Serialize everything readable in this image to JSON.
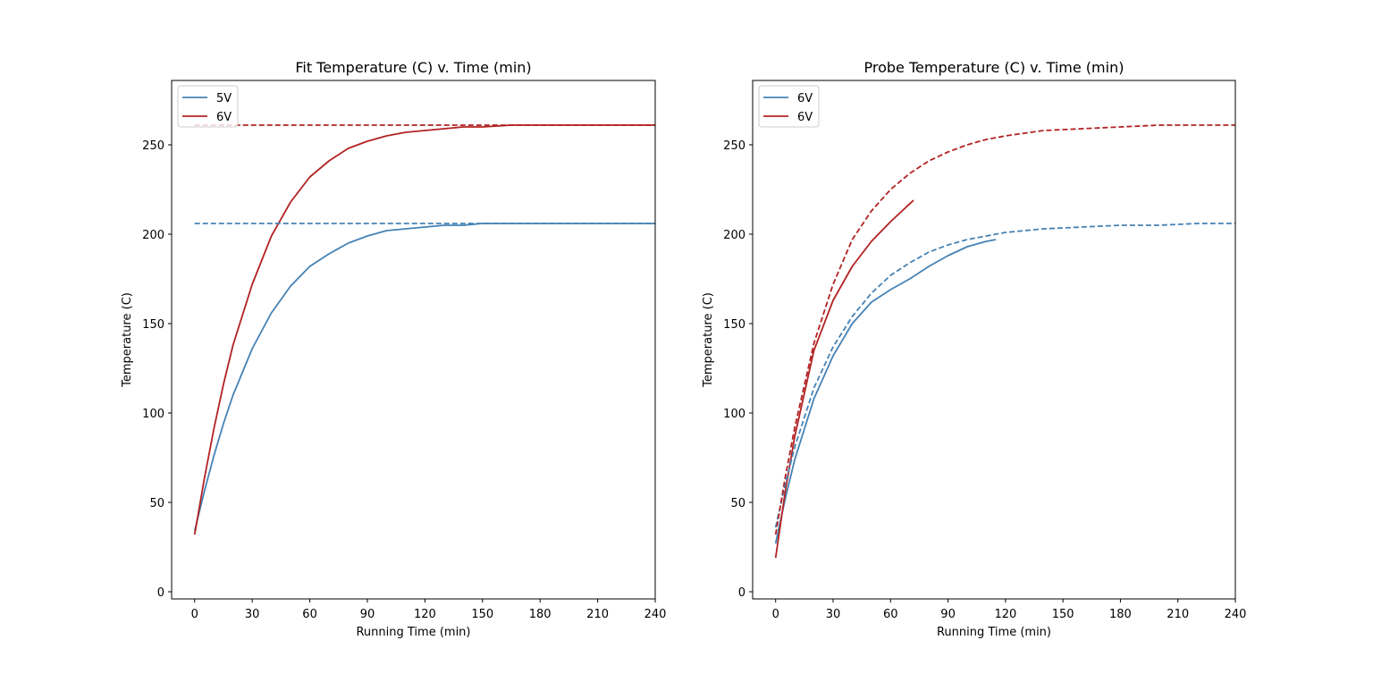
{
  "chart_data": [
    {
      "type": "line",
      "title": "Fit Temperature (C) v. Time (min)",
      "xlabel": "Running Time (min)",
      "ylabel": "Temperature (C)",
      "xlim": [
        -12,
        240
      ],
      "ylim": [
        -4,
        286
      ],
      "xticks": [
        0,
        30,
        60,
        90,
        120,
        150,
        180,
        210,
        240
      ],
      "yticks": [
        0,
        50,
        100,
        150,
        200,
        250
      ],
      "legend": "top-left",
      "series": [
        {
          "name": "5V",
          "color": "#4682b4",
          "style": "solid",
          "x": [
            0,
            5,
            10,
            15,
            20,
            30,
            40,
            50,
            60,
            70,
            80,
            90,
            100,
            110,
            120,
            130,
            140,
            150,
            165,
            180,
            200,
            220,
            240
          ],
          "y": [
            34,
            56,
            76,
            94,
            110,
            136,
            156,
            171,
            182,
            189,
            195,
            199,
            202,
            203,
            204,
            205,
            205,
            206,
            206,
            206,
            206,
            206,
            206
          ]
        },
        {
          "name": "6V",
          "color": "#b22222",
          "style": "solid",
          "x": [
            0,
            5,
            10,
            15,
            20,
            30,
            40,
            50,
            60,
            70,
            80,
            90,
            100,
            110,
            120,
            130,
            140,
            150,
            165,
            180,
            200,
            220,
            240
          ],
          "y": [
            32,
            63,
            91,
            116,
            138,
            172,
            199,
            218,
            232,
            241,
            248,
            252,
            255,
            257,
            258,
            259,
            260,
            260,
            261,
            261,
            261,
            261,
            261
          ]
        },
        {
          "name": "",
          "color": "#4682b4",
          "style": "dashed",
          "x": [
            0,
            240
          ],
          "y": [
            206,
            206
          ]
        },
        {
          "name": "",
          "color": "#b22222",
          "style": "dashed",
          "x": [
            0,
            240
          ],
          "y": [
            261,
            261
          ]
        }
      ]
    },
    {
      "type": "line",
      "title": "Probe Temperature (C) v. Time (min)",
      "xlabel": "Running Time (min)",
      "ylabel": "Temperature (C)",
      "xlim": [
        -12,
        240
      ],
      "ylim": [
        -4,
        286
      ],
      "xticks": [
        0,
        30,
        60,
        90,
        120,
        150,
        180,
        210,
        240
      ],
      "yticks": [
        0,
        50,
        100,
        150,
        200,
        250
      ],
      "legend": "top-left",
      "series": [
        {
          "name": "6V",
          "color": "#4682b4",
          "style": "solid",
          "x": [
            0,
            5,
            10,
            20,
            30,
            40,
            50,
            60,
            65,
            70,
            80,
            90,
            100,
            110,
            115
          ],
          "y": [
            27,
            52,
            74,
            108,
            132,
            150,
            162,
            169,
            172,
            175,
            182,
            188,
            193,
            196,
            197
          ]
        },
        {
          "name": "6V",
          "color": "#b22222",
          "style": "solid",
          "x": [
            0,
            5,
            10,
            20,
            30,
            40,
            50,
            60,
            72
          ],
          "y": [
            19,
            56,
            87,
            135,
            163,
            182,
            196,
            207,
            219
          ]
        },
        {
          "name": "",
          "color": "#4682b4",
          "style": "dashed",
          "x": [
            0,
            5,
            10,
            20,
            30,
            40,
            50,
            60,
            70,
            80,
            90,
            100,
            110,
            120,
            140,
            160,
            180,
            200,
            220,
            240
          ],
          "y": [
            36,
            60,
            81,
            114,
            137,
            154,
            167,
            177,
            184,
            190,
            194,
            197,
            199,
            201,
            203,
            204,
            205,
            205,
            206,
            206
          ]
        },
        {
          "name": "",
          "color": "#b22222",
          "style": "dashed",
          "x": [
            0,
            5,
            10,
            20,
            30,
            40,
            50,
            60,
            70,
            80,
            90,
            100,
            110,
            120,
            140,
            160,
            180,
            200,
            220,
            240
          ],
          "y": [
            32,
            64,
            92,
            139,
            172,
            197,
            213,
            225,
            234,
            241,
            246,
            250,
            253,
            255,
            258,
            259,
            260,
            261,
            261,
            261
          ]
        }
      ]
    }
  ]
}
